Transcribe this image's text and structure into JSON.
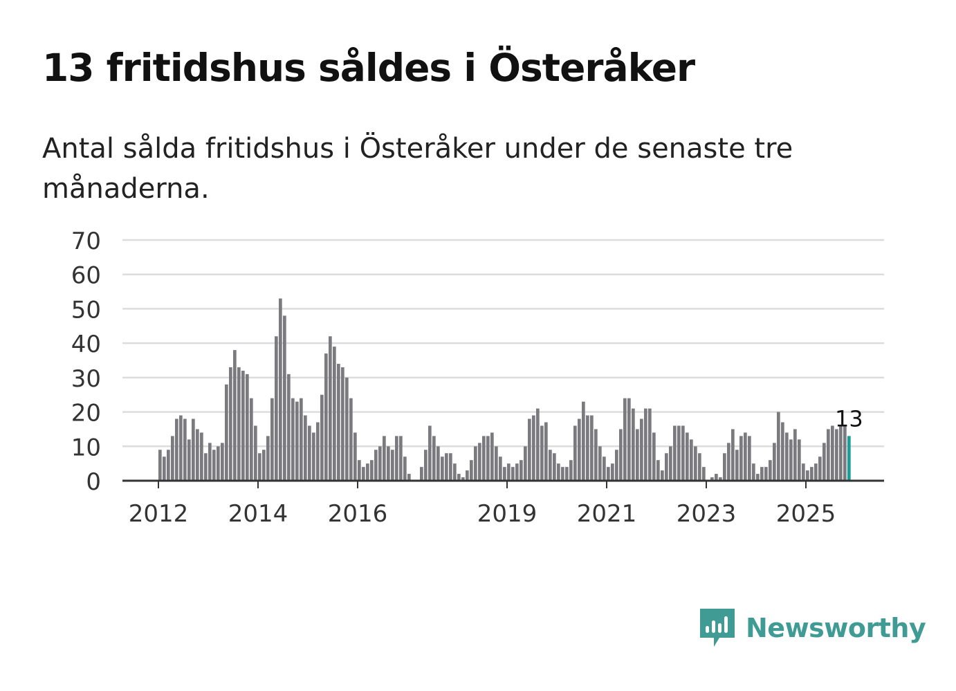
{
  "title": "13 fritidshus såldes i Österåker",
  "subtitle": "Antal sålda fritidshus i Österåker under de senaste tre månaderna.",
  "brand": {
    "name": "Newsworthy",
    "color": "#3f9b93"
  },
  "chart_data": {
    "type": "bar",
    "ylim": [
      0,
      70
    ],
    "yticks": [
      0,
      10,
      20,
      30,
      40,
      50,
      60,
      70
    ],
    "xlim": [
      2011.25,
      2026.5
    ],
    "xticks": [
      {
        "label": "2012",
        "value": 2012
      },
      {
        "label": "2014",
        "value": 2014
      },
      {
        "label": "2016",
        "value": 2016
      },
      {
        "label": "2019",
        "value": 2019
      },
      {
        "label": "2021",
        "value": 2021
      },
      {
        "label": "2023",
        "value": 2023
      },
      {
        "label": "2025",
        "value": 2025
      }
    ],
    "grid": true,
    "bar_color": "#7b7a7f",
    "highlight_color": "#1a9e99",
    "highlight_label": "13",
    "start": {
      "year": 2012,
      "month": 1
    },
    "values": [
      9,
      7,
      9,
      13,
      18,
      19,
      18,
      12,
      18,
      15,
      14,
      8,
      11,
      9,
      10,
      11,
      28,
      33,
      38,
      33,
      32,
      31,
      24,
      16,
      8,
      9,
      13,
      24,
      42,
      53,
      48,
      31,
      24,
      23,
      24,
      19,
      16,
      14,
      17,
      25,
      37,
      42,
      39,
      34,
      33,
      30,
      24,
      14,
      6,
      4,
      5,
      6,
      9,
      10,
      13,
      10,
      9,
      13,
      13,
      7,
      2,
      0,
      0,
      4,
      9,
      16,
      13,
      10,
      7,
      8,
      8,
      5,
      2,
      1,
      3,
      6,
      10,
      11,
      13,
      13,
      14,
      10,
      7,
      4,
      5,
      4,
      5,
      6,
      10,
      18,
      19,
      21,
      16,
      17,
      9,
      8,
      5,
      4,
      4,
      6,
      16,
      18,
      23,
      19,
      19,
      15,
      10,
      7,
      4,
      5,
      9,
      15,
      24,
      24,
      21,
      15,
      18,
      21,
      21,
      14,
      6,
      3,
      8,
      10,
      16,
      16,
      16,
      14,
      12,
      10,
      8,
      4,
      0,
      1,
      2,
      1,
      8,
      11,
      15,
      9,
      13,
      14,
      13,
      5,
      2,
      4,
      4,
      6,
      11,
      20,
      17,
      14,
      12,
      15,
      12,
      5,
      3,
      4,
      5,
      7,
      11,
      15,
      16,
      15,
      16,
      16,
      13
    ]
  }
}
